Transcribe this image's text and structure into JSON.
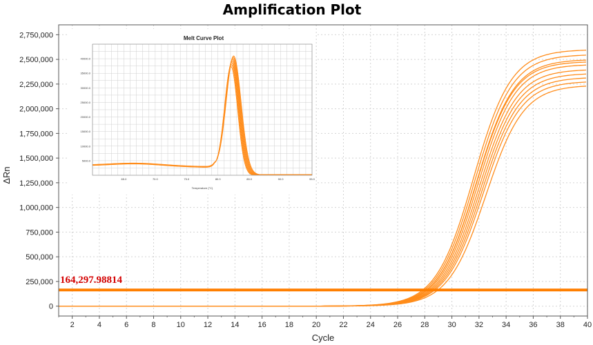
{
  "chart_data": [
    {
      "type": "line",
      "title": "Amplification Plot",
      "xlabel": "Cycle",
      "ylabel": "ΔRn",
      "xlim": [
        1,
        40
      ],
      "ylim": [
        -100000,
        2850000
      ],
      "x_ticks": [
        "2",
        "4",
        "6",
        "8",
        "10",
        "12",
        "14",
        "16",
        "18",
        "20",
        "22",
        "24",
        "26",
        "28",
        "30",
        "32",
        "34",
        "36",
        "38",
        "40"
      ],
      "y_ticks": [
        "0",
        "250,000",
        "500,000",
        "750,000",
        "1,000,000",
        "1,250,000",
        "1,500,000",
        "1,750,000",
        "2,000,000",
        "2,250,000",
        "2,500,000",
        "2,750,000"
      ],
      "grid": true,
      "threshold": {
        "label": "164,297.98814",
        "value": 164297.98814,
        "color": "#ff7f00"
      },
      "line_color": "#ff8c1a",
      "sigmoid_midpoint_cycle": [
        31.6,
        31.7,
        31.8,
        31.9,
        32.0,
        32.1,
        32.2,
        32.3,
        32.5,
        31.8
      ],
      "series": [
        {
          "plateau": 2600000,
          "x": [
            1,
            10,
            20,
            24,
            26,
            28,
            30,
            32,
            34,
            36,
            38,
            40
          ],
          "values": [
            0,
            0,
            4000,
            30000,
            90000,
            210000,
            640000,
            1420000,
            2020000,
            2340000,
            2500000,
            2590000
          ]
        },
        {
          "plateau": 2550000,
          "x": [
            1,
            10,
            20,
            24,
            26,
            28,
            30,
            32,
            34,
            36,
            38,
            40
          ],
          "values": [
            0,
            0,
            3500,
            26000,
            80000,
            190000,
            590000,
            1340000,
            1950000,
            2280000,
            2450000,
            2530000
          ]
        },
        {
          "plateau": 2500000,
          "x": [
            1,
            10,
            20,
            24,
            26,
            28,
            30,
            32,
            34,
            36,
            38,
            40
          ],
          "values": [
            0,
            0,
            3000,
            23000,
            72000,
            175000,
            550000,
            1280000,
            1890000,
            2220000,
            2390000,
            2480000
          ]
        },
        {
          "plateau": 2450000,
          "x": [
            1,
            10,
            20,
            24,
            26,
            28,
            30,
            32,
            34,
            36,
            38,
            40
          ],
          "values": [
            0,
            0,
            2800,
            21000,
            66000,
            160000,
            510000,
            1220000,
            1830000,
            2160000,
            2330000,
            2420000
          ]
        },
        {
          "plateau": 2400000,
          "x": [
            1,
            10,
            20,
            24,
            26,
            28,
            30,
            32,
            34,
            36,
            38,
            40
          ],
          "values": [
            0,
            0,
            2500,
            19000,
            60000,
            150000,
            480000,
            1170000,
            1780000,
            2110000,
            2280000,
            2370000
          ]
        },
        {
          "plateau": 2360000,
          "x": [
            1,
            10,
            20,
            24,
            26,
            28,
            30,
            32,
            34,
            36,
            38,
            40
          ],
          "values": [
            0,
            0,
            2300,
            17000,
            55000,
            140000,
            450000,
            1120000,
            1730000,
            2060000,
            2230000,
            2330000
          ]
        },
        {
          "plateau": 2320000,
          "x": [
            1,
            10,
            20,
            24,
            26,
            28,
            30,
            32,
            34,
            36,
            38,
            40
          ],
          "values": [
            0,
            0,
            2100,
            15000,
            50000,
            130000,
            420000,
            1080000,
            1690000,
            2020000,
            2190000,
            2290000
          ]
        },
        {
          "plateau": 2280000,
          "x": [
            1,
            10,
            20,
            24,
            26,
            28,
            30,
            32,
            34,
            36,
            38,
            40
          ],
          "values": [
            0,
            0,
            1900,
            14000,
            46000,
            120000,
            400000,
            1040000,
            1650000,
            1980000,
            2150000,
            2250000
          ]
        },
        {
          "plateau": 2240000,
          "x": [
            1,
            10,
            20,
            24,
            26,
            28,
            30,
            32,
            34,
            36,
            38,
            40
          ],
          "values": [
            0,
            0,
            1700,
            12000,
            40000,
            108000,
            370000,
            990000,
            1600000,
            1940000,
            2110000,
            2210000
          ]
        },
        {
          "plateau": 2480000,
          "x": [
            1,
            10,
            20,
            24,
            26,
            28,
            30,
            32,
            34,
            36,
            38,
            40
          ],
          "values": [
            0,
            0,
            2900,
            22000,
            70000,
            170000,
            540000,
            1260000,
            1870000,
            2200000,
            2370000,
            2460000
          ]
        }
      ]
    },
    {
      "type": "line",
      "title": "Melt Curve Plot",
      "xlabel": "Temperature (°C)",
      "ylabel": "",
      "xlim": [
        60,
        95
      ],
      "ylim": [
        0,
        45000
      ],
      "x_ticks": [
        "65.0",
        "70.0",
        "75.0",
        "80.0",
        "85.0",
        "90.0",
        "95.0"
      ],
      "y_ticks": [
        "5000.0",
        "10000.0",
        "15000.0",
        "20000.0",
        "25000.0",
        "30000.0",
        "35000.0",
        "40000.0"
      ],
      "grid": true,
      "peak_temperature": 82.3,
      "line_color": "#ff8c1a",
      "series_peaks": [
        39500,
        40200,
        40800,
        41300,
        41800,
        42200,
        42600,
        43000
      ]
    }
  ]
}
